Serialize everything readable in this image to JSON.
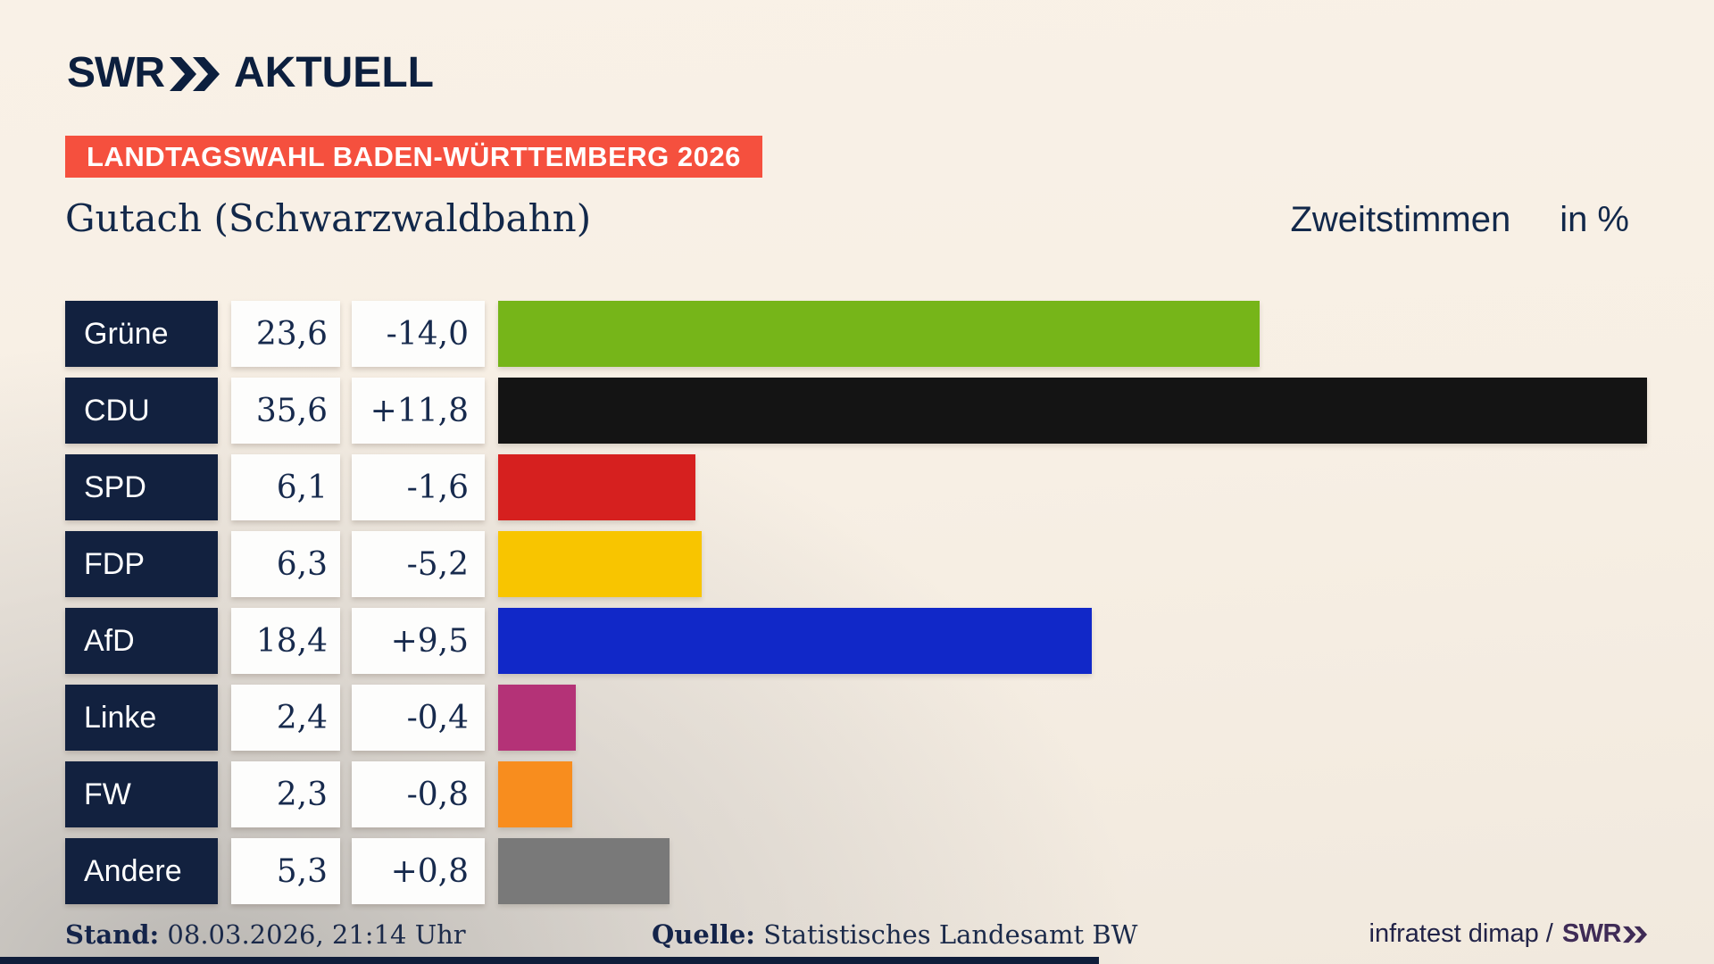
{
  "brand": {
    "logo_swr": "SWR",
    "logo_suffix": "AKTUELL",
    "logo_color": "#0c1f3e"
  },
  "banner": {
    "text": "LANDTAGSWAHL BADEN-WÜRTTEMBERG 2026",
    "bg": "#f5503e"
  },
  "title": {
    "left": "Gutach (Schwarzwaldbahn)",
    "right_main": "Zweitstimmen",
    "right_unit": "in %"
  },
  "chart_data": {
    "type": "bar",
    "orientation": "horizontal",
    "title": "Gutach (Schwarzwaldbahn)",
    "subtitle": "Zweitstimmen in %",
    "unit": "%",
    "grid": false,
    "legend": "none",
    "xlim": [
      0,
      37.7
    ],
    "categories": [
      "Grüne",
      "CDU",
      "SPD",
      "FDP",
      "AfD",
      "Linke",
      "FW",
      "Andere"
    ],
    "values": [
      23.6,
      35.6,
      6.1,
      6.3,
      18.4,
      2.4,
      2.3,
      5.3
    ],
    "value_labels": [
      "23,6",
      "35,6",
      "6,1",
      "6,3",
      "18,4",
      "2,4",
      "2,3",
      "5,3"
    ],
    "change_values": [
      -14.0,
      11.8,
      -1.6,
      -5.2,
      9.5,
      -0.4,
      -0.8,
      0.8
    ],
    "change_labels": [
      "-14,0",
      "+11,8",
      "-1,6",
      "-5,2",
      "+9,5",
      "-0,4",
      "-0,8",
      "+0,8"
    ],
    "bar_colors": [
      "#76b519",
      "#141414",
      "#d6201f",
      "#f8c500",
      "#1128c8",
      "#b43277",
      "#f88d1e",
      "#797979"
    ],
    "label_box_color": "#12213f",
    "value_box_color": "#fdfdfc"
  },
  "footer": {
    "stand_label": "Stand:",
    "stand_value": "08.03.2026, 21:14 Uhr",
    "quelle_label": "Quelle:",
    "quelle_value": "Statistisches Landesamt BW",
    "credit": "infratest dimap /",
    "credit_brand": "SWR"
  }
}
